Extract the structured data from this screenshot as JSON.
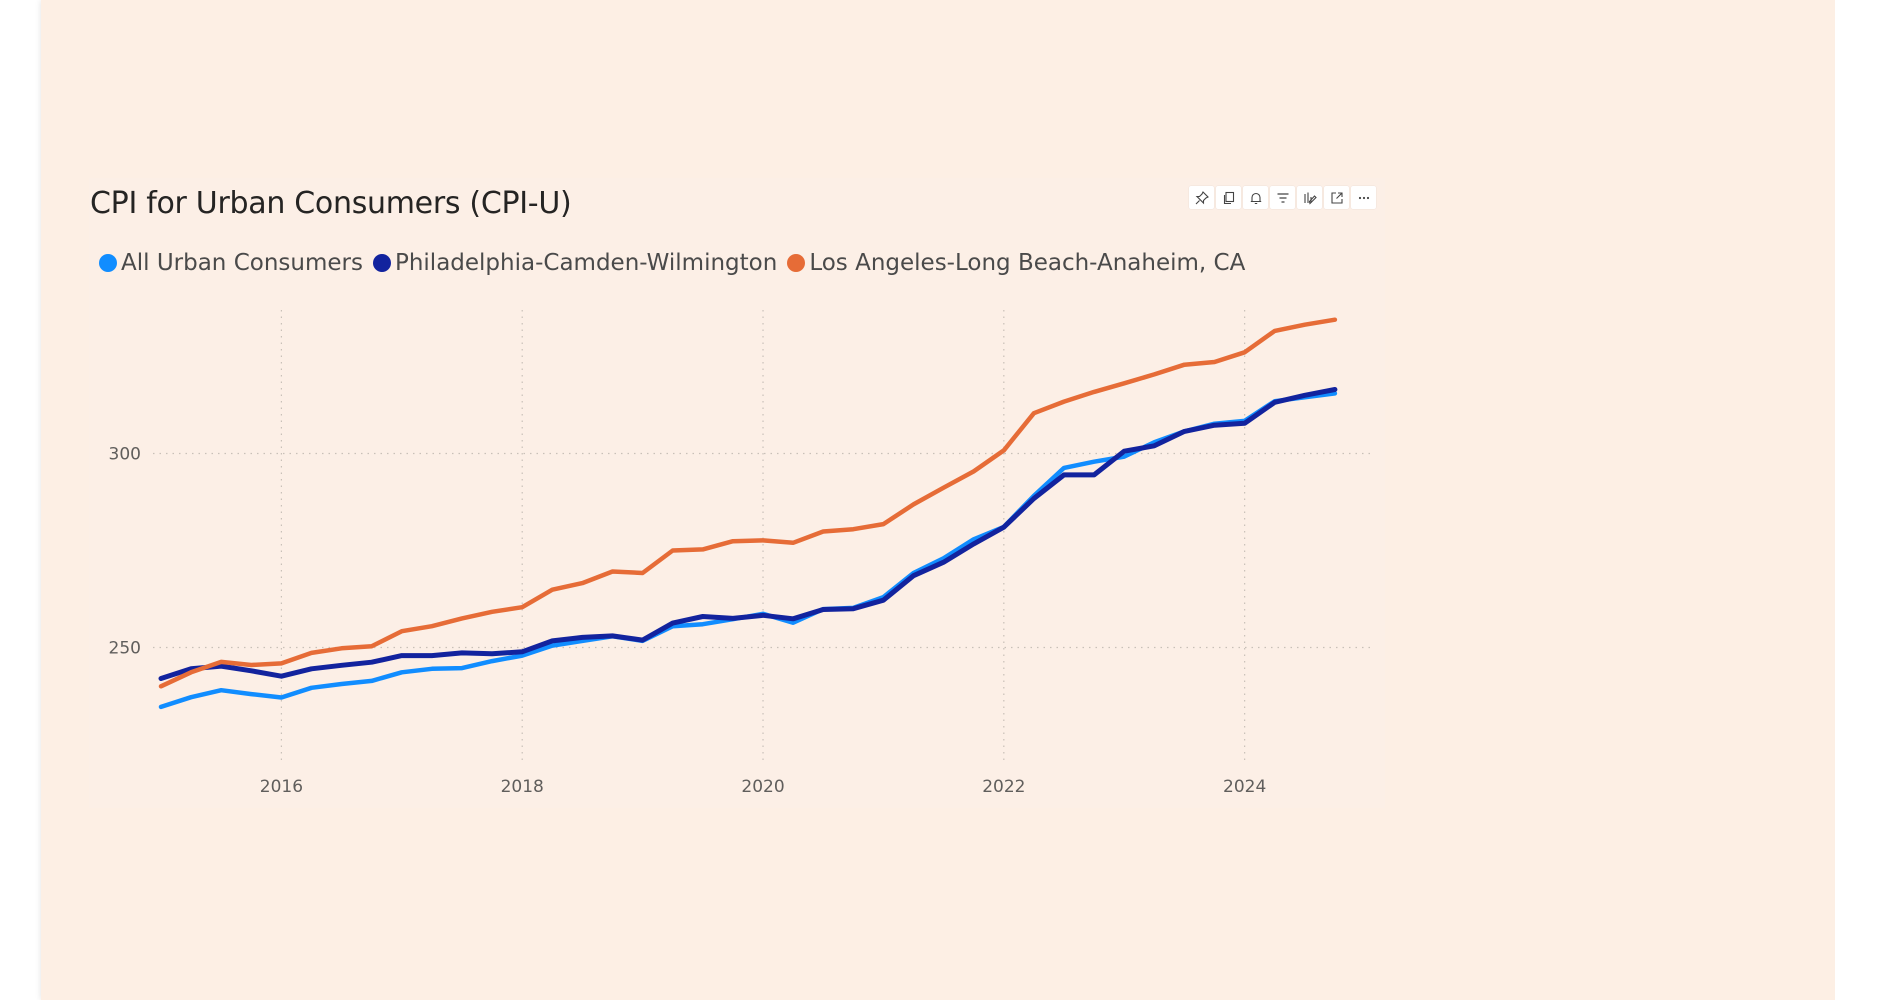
{
  "visual": {
    "title": "CPI for Urban Consumers (CPI-U)",
    "header_icons": [
      "pin-icon",
      "copy-icon",
      "bell-icon",
      "filter-icon",
      "format-icon",
      "focus-mode-icon",
      "more-options-icon"
    ]
  },
  "legend": [
    {
      "label": "All Urban Consumers",
      "color": "#118DFF"
    },
    {
      "label": "Philadelphia-Camden-Wilmington",
      "color": "#12239E"
    },
    {
      "label": "Los Angeles-Long Beach-Anaheim, CA",
      "color": "#E66C37"
    }
  ],
  "chart_data": {
    "type": "line",
    "title": "CPI for Urban Consumers (CPI-U)",
    "xlabel": "",
    "ylabel": "",
    "xlim": [
      2015,
      2024.9
    ],
    "ylim": [
      221,
      337
    ],
    "x_ticks": [
      2016,
      2018,
      2020,
      2022,
      2024
    ],
    "y_ticks": [
      250,
      300
    ],
    "grid": true,
    "legend_position": "top-left",
    "series": [
      {
        "name": "All Urban Consumers",
        "color": "#118DFF",
        "x": [
          2015.0,
          2015.25,
          2015.5,
          2015.75,
          2016.0,
          2016.25,
          2016.5,
          2016.75,
          2017.0,
          2017.25,
          2017.5,
          2017.75,
          2018.0,
          2018.25,
          2018.5,
          2018.75,
          2019.0,
          2019.25,
          2019.5,
          2019.75,
          2020.0,
          2020.25,
          2020.5,
          2020.75,
          2021.0,
          2021.25,
          2021.5,
          2021.75,
          2022.0,
          2022.25,
          2022.5,
          2022.75,
          2023.0,
          2023.25,
          2023.5,
          2023.75,
          2024.0,
          2024.25,
          2024.5,
          2024.75
        ],
        "values": [
          234.7,
          237.2,
          239.0,
          238.0,
          237.1,
          239.6,
          240.6,
          241.4,
          243.6,
          244.5,
          244.7,
          246.5,
          247.9,
          250.5,
          251.7,
          252.9,
          251.7,
          255.5,
          256.0,
          257.3,
          258.7,
          256.4,
          259.9,
          260.2,
          263.0,
          269.2,
          273.0,
          277.9,
          281.1,
          289.1,
          296.3,
          297.9,
          299.2,
          302.9,
          305.7,
          307.7,
          308.4,
          313.5,
          314.5,
          315.5
        ]
      },
      {
        "name": "Philadelphia-Camden-Wilmington",
        "color": "#12239E",
        "x": [
          2015.0,
          2015.25,
          2015.5,
          2015.75,
          2016.0,
          2016.25,
          2016.5,
          2016.75,
          2017.0,
          2017.25,
          2017.5,
          2017.75,
          2018.0,
          2018.25,
          2018.5,
          2018.75,
          2019.0,
          2019.25,
          2019.5,
          2019.75,
          2020.0,
          2020.25,
          2020.5,
          2020.75,
          2021.0,
          2021.25,
          2021.5,
          2021.75,
          2022.0,
          2022.25,
          2022.5,
          2022.75,
          2023.0,
          2023.25,
          2023.5,
          2023.75,
          2024.0,
          2024.25,
          2024.5,
          2024.75
        ],
        "values": [
          242.0,
          244.5,
          245.2,
          244.0,
          242.6,
          244.5,
          245.4,
          246.2,
          247.9,
          247.9,
          248.6,
          248.4,
          248.9,
          251.7,
          252.6,
          253.0,
          251.9,
          256.3,
          258.0,
          257.5,
          258.3,
          257.4,
          259.8,
          260.0,
          262.2,
          268.5,
          272.0,
          276.7,
          281.0,
          288.4,
          294.5,
          294.5,
          300.6,
          302.0,
          305.7,
          307.3,
          307.8,
          313.2,
          315.0,
          316.5
        ]
      },
      {
        "name": "Los Angeles-Long Beach-Anaheim, CA",
        "color": "#E66C37",
        "x": [
          2015.0,
          2015.25,
          2015.5,
          2015.75,
          2016.0,
          2016.25,
          2016.5,
          2016.75,
          2017.0,
          2017.25,
          2017.5,
          2017.75,
          2018.0,
          2018.25,
          2018.5,
          2018.75,
          2019.0,
          2019.25,
          2019.5,
          2019.75,
          2020.0,
          2020.25,
          2020.5,
          2020.75,
          2021.0,
          2021.25,
          2021.5,
          2021.75,
          2022.0,
          2022.25,
          2022.5,
          2022.75,
          2023.0,
          2023.25,
          2023.5,
          2023.75,
          2024.0,
          2024.25,
          2024.5,
          2024.75
        ],
        "values": [
          240.0,
          243.6,
          246.3,
          245.5,
          245.9,
          248.6,
          249.8,
          250.3,
          254.2,
          255.5,
          257.5,
          259.2,
          260.4,
          264.9,
          266.6,
          269.6,
          269.2,
          275.0,
          275.3,
          277.4,
          277.6,
          277.0,
          279.9,
          280.5,
          281.8,
          286.9,
          291.2,
          295.4,
          300.8,
          310.4,
          313.4,
          315.9,
          318.1,
          320.4,
          322.9,
          323.6,
          326.1,
          331.6,
          333.2,
          334.5
        ]
      }
    ]
  }
}
